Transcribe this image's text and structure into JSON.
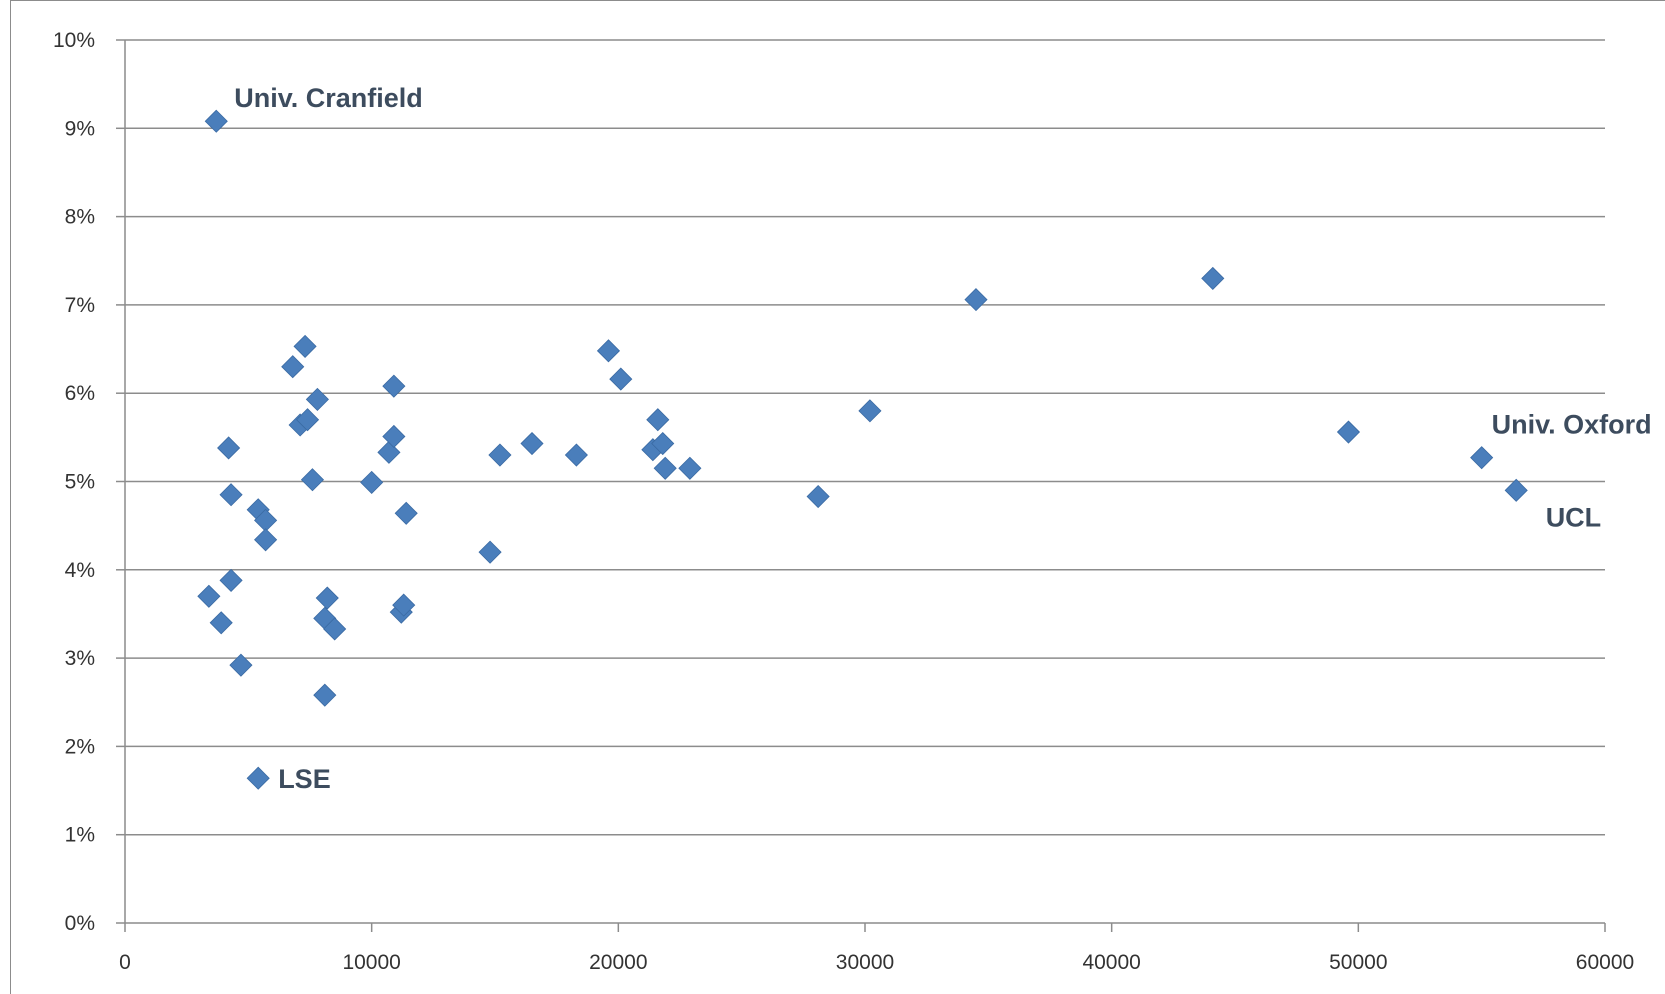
{
  "chart_data": {
    "type": "scatter",
    "title": "",
    "xlabel": "",
    "ylabel": "",
    "xlim": [
      0,
      60000
    ],
    "ylim": [
      0,
      0.1
    ],
    "x_ticks": [
      "0",
      "10000",
      "20000",
      "30000",
      "40000",
      "50000",
      "60000"
    ],
    "y_ticks": [
      "0%",
      "1%",
      "2%",
      "3%",
      "4%",
      "5%",
      "6%",
      "7%",
      "8%",
      "9%",
      "10%"
    ],
    "grid": "horizontal",
    "marker_color": "#4a7ebb",
    "series": [
      {
        "points": [
          [
            3700,
            0.0908
          ],
          [
            5400,
            0.0164
          ],
          [
            55000,
            0.0527
          ],
          [
            56400,
            0.049
          ],
          [
            3400,
            0.037
          ],
          [
            3900,
            0.034
          ],
          [
            4300,
            0.0388
          ],
          [
            4200,
            0.0538
          ],
          [
            4300,
            0.0485
          ],
          [
            4700,
            0.0292
          ],
          [
            5400,
            0.0468
          ],
          [
            5700,
            0.0456
          ],
          [
            5700,
            0.0434
          ],
          [
            6800,
            0.063
          ],
          [
            7300,
            0.0653
          ],
          [
            7100,
            0.0564
          ],
          [
            7400,
            0.057
          ],
          [
            7600,
            0.0502
          ],
          [
            7800,
            0.0593
          ],
          [
            8100,
            0.0258
          ],
          [
            8100,
            0.0345
          ],
          [
            8200,
            0.0368
          ],
          [
            8500,
            0.0333
          ],
          [
            10000,
            0.0499
          ],
          [
            10700,
            0.0533
          ],
          [
            10900,
            0.0608
          ],
          [
            10900,
            0.0551
          ],
          [
            11200,
            0.0352
          ],
          [
            11300,
            0.036
          ],
          [
            11400,
            0.0464
          ],
          [
            14800,
            0.042
          ],
          [
            15200,
            0.053
          ],
          [
            16500,
            0.0543
          ],
          [
            18300,
            0.053
          ],
          [
            19600,
            0.0648
          ],
          [
            20100,
            0.0616
          ],
          [
            21400,
            0.0536
          ],
          [
            21600,
            0.057
          ],
          [
            21800,
            0.0543
          ],
          [
            21900,
            0.0515
          ],
          [
            22900,
            0.0515
          ],
          [
            28100,
            0.0483
          ],
          [
            30200,
            0.058
          ],
          [
            34500,
            0.0706
          ],
          [
            44100,
            0.073
          ],
          [
            49600,
            0.0556
          ]
        ]
      }
    ],
    "annotations": [
      {
        "text": "Univ. Cranfield",
        "x": 3700,
        "y": 0.0908
      },
      {
        "text": "LSE",
        "x": 5400,
        "y": 0.0164
      },
      {
        "text": "Univ. Oxford",
        "x": 55000,
        "y": 0.0527
      },
      {
        "text": "UCL",
        "x": 56400,
        "y": 0.049
      }
    ]
  }
}
